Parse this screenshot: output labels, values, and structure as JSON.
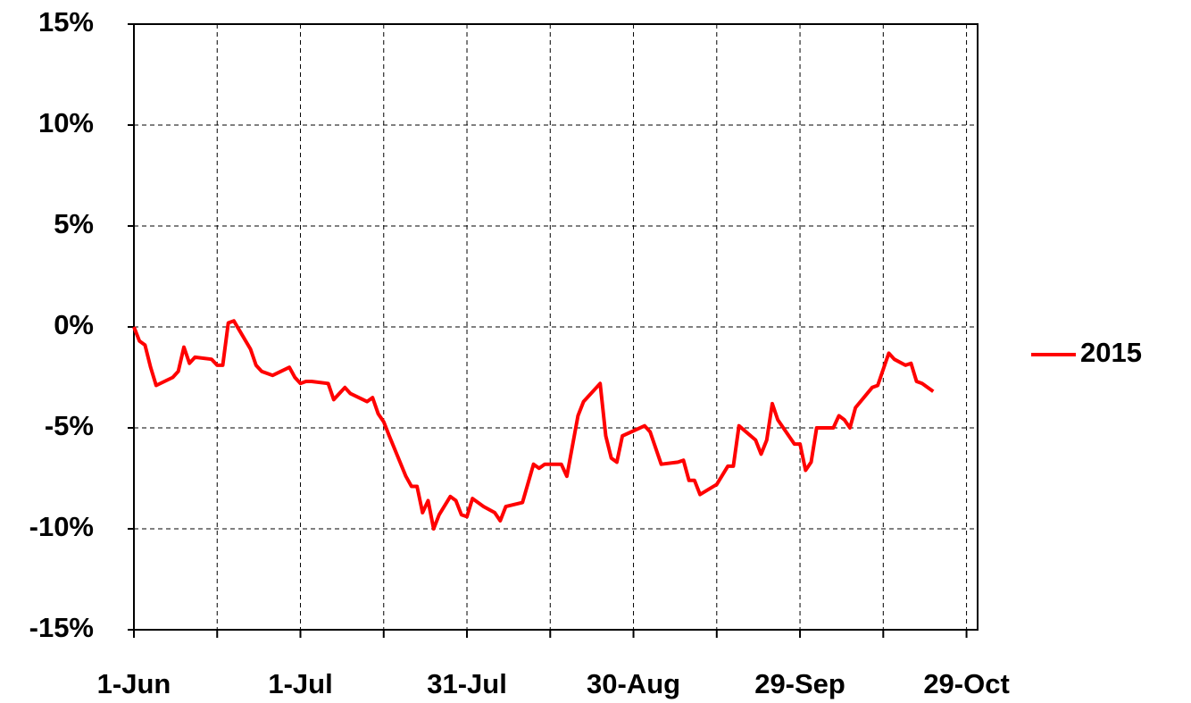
{
  "chart_data": {
    "type": "line",
    "x": [
      "1-Jun",
      "2-Jun",
      "3-Jun",
      "4-Jun",
      "5-Jun",
      "8-Jun",
      "9-Jun",
      "10-Jun",
      "11-Jun",
      "12-Jun",
      "15-Jun",
      "16-Jun",
      "17-Jun",
      "18-Jun",
      "19-Jun",
      "22-Jun",
      "23-Jun",
      "24-Jun",
      "25-Jun",
      "26-Jun",
      "29-Jun",
      "30-Jun",
      "1-Jul",
      "2-Jul",
      "3-Jul",
      "6-Jul",
      "7-Jul",
      "8-Jul",
      "9-Jul",
      "10-Jul",
      "13-Jul",
      "14-Jul",
      "15-Jul",
      "16-Jul",
      "17-Jul",
      "20-Jul",
      "21-Jul",
      "22-Jul",
      "23-Jul",
      "24-Jul",
      "25-Jul",
      "26-Jul",
      "28-Jul",
      "29-Jul",
      "30-Jul",
      "31-Jul",
      "1-Aug",
      "3-Aug",
      "5-Aug",
      "6-Aug",
      "7-Aug",
      "10-Aug",
      "12-Aug",
      "13-Aug",
      "14-Aug",
      "17-Aug",
      "18-Aug",
      "20-Aug",
      "21-Aug",
      "24-Aug",
      "25-Aug",
      "26-Aug",
      "27-Aug",
      "28-Aug",
      "1-Sep",
      "2-Sep",
      "4-Sep",
      "7-Sep",
      "8-Sep",
      "9-Sep",
      "10-Sep",
      "11-Sep",
      "14-Sep",
      "16-Sep",
      "17-Sep",
      "18-Sep",
      "21-Sep",
      "22-Sep",
      "23-Sep",
      "24-Sep",
      "25-Sep",
      "28-Sep",
      "29-Sep",
      "30-Sep",
      "1-Oct",
      "2-Oct",
      "4-Oct",
      "5-Oct",
      "6-Oct",
      "7-Oct",
      "8-Oct",
      "9-Oct",
      "12-Oct",
      "13-Oct",
      "15-Oct",
      "16-Oct",
      "18-Oct",
      "19-Oct",
      "20-Oct",
      "21-Oct",
      "23-Oct"
    ],
    "series": [
      {
        "name": "2015",
        "color": "#ff0000",
        "values": [
          0,
          -0.7,
          -0.9,
          -2.0,
          -2.9,
          -2.5,
          -2.2,
          -1.0,
          -1.8,
          -1.5,
          -1.6,
          -1.9,
          -1.9,
          0.2,
          0.3,
          -1.1,
          -1.9,
          -2.2,
          -2.3,
          -2.4,
          -2.0,
          -2.5,
          -2.8,
          -2.7,
          -2.7,
          -2.8,
          -3.6,
          -3.3,
          -3.0,
          -3.3,
          -3.7,
          -3.5,
          -4.3,
          -4.7,
          -5.4,
          -7.4,
          -7.9,
          -7.9,
          -9.2,
          -8.6,
          -10.0,
          -9.3,
          -8.4,
          -8.6,
          -9.3,
          -9.4,
          -8.5,
          -8.9,
          -9.2,
          -9.6,
          -8.9,
          -8.7,
          -6.8,
          -7.0,
          -6.8,
          -6.8,
          -7.4,
          -4.4,
          -3.7,
          -2.8,
          -5.4,
          -6.5,
          -6.7,
          -5.4,
          -4.9,
          -5.2,
          -6.8,
          -6.7,
          -6.6,
          -7.6,
          -7.6,
          -8.3,
          -7.8,
          -6.9,
          -6.9,
          -4.9,
          -5.6,
          -6.3,
          -5.6,
          -3.8,
          -4.6,
          -5.8,
          -5.8,
          -7.1,
          -6.7,
          -5.0,
          -5.0,
          -5.0,
          -4.4,
          -4.6,
          -5.0,
          -4.0,
          -3.0,
          -2.9,
          -1.3,
          -1.6,
          -1.9,
          -1.8,
          -2.7,
          -2.8,
          -3.2
        ]
      }
    ],
    "xlim": [
      "1-Jun",
      "31-Oct"
    ],
    "xticks": [
      "1-Jun",
      "1-Jul",
      "31-Jul",
      "30-Aug",
      "29-Sep",
      "29-Oct"
    ],
    "xminor": [
      "16-Jun",
      "16-Jul",
      "15-Aug",
      "14-Sep",
      "14-Oct"
    ],
    "ylim": [
      -15,
      15
    ],
    "yticks": [
      {
        "value": -15,
        "label": "-15%"
      },
      {
        "value": -10,
        "label": "-10%"
      },
      {
        "value": -5,
        "label": "-5%"
      },
      {
        "value": 0,
        "label": "0%"
      },
      {
        "value": 5,
        "label": "5%"
      },
      {
        "value": 10,
        "label": "10%"
      },
      {
        "value": 15,
        "label": "15%"
      }
    ],
    "grid": true,
    "legend": "right"
  }
}
